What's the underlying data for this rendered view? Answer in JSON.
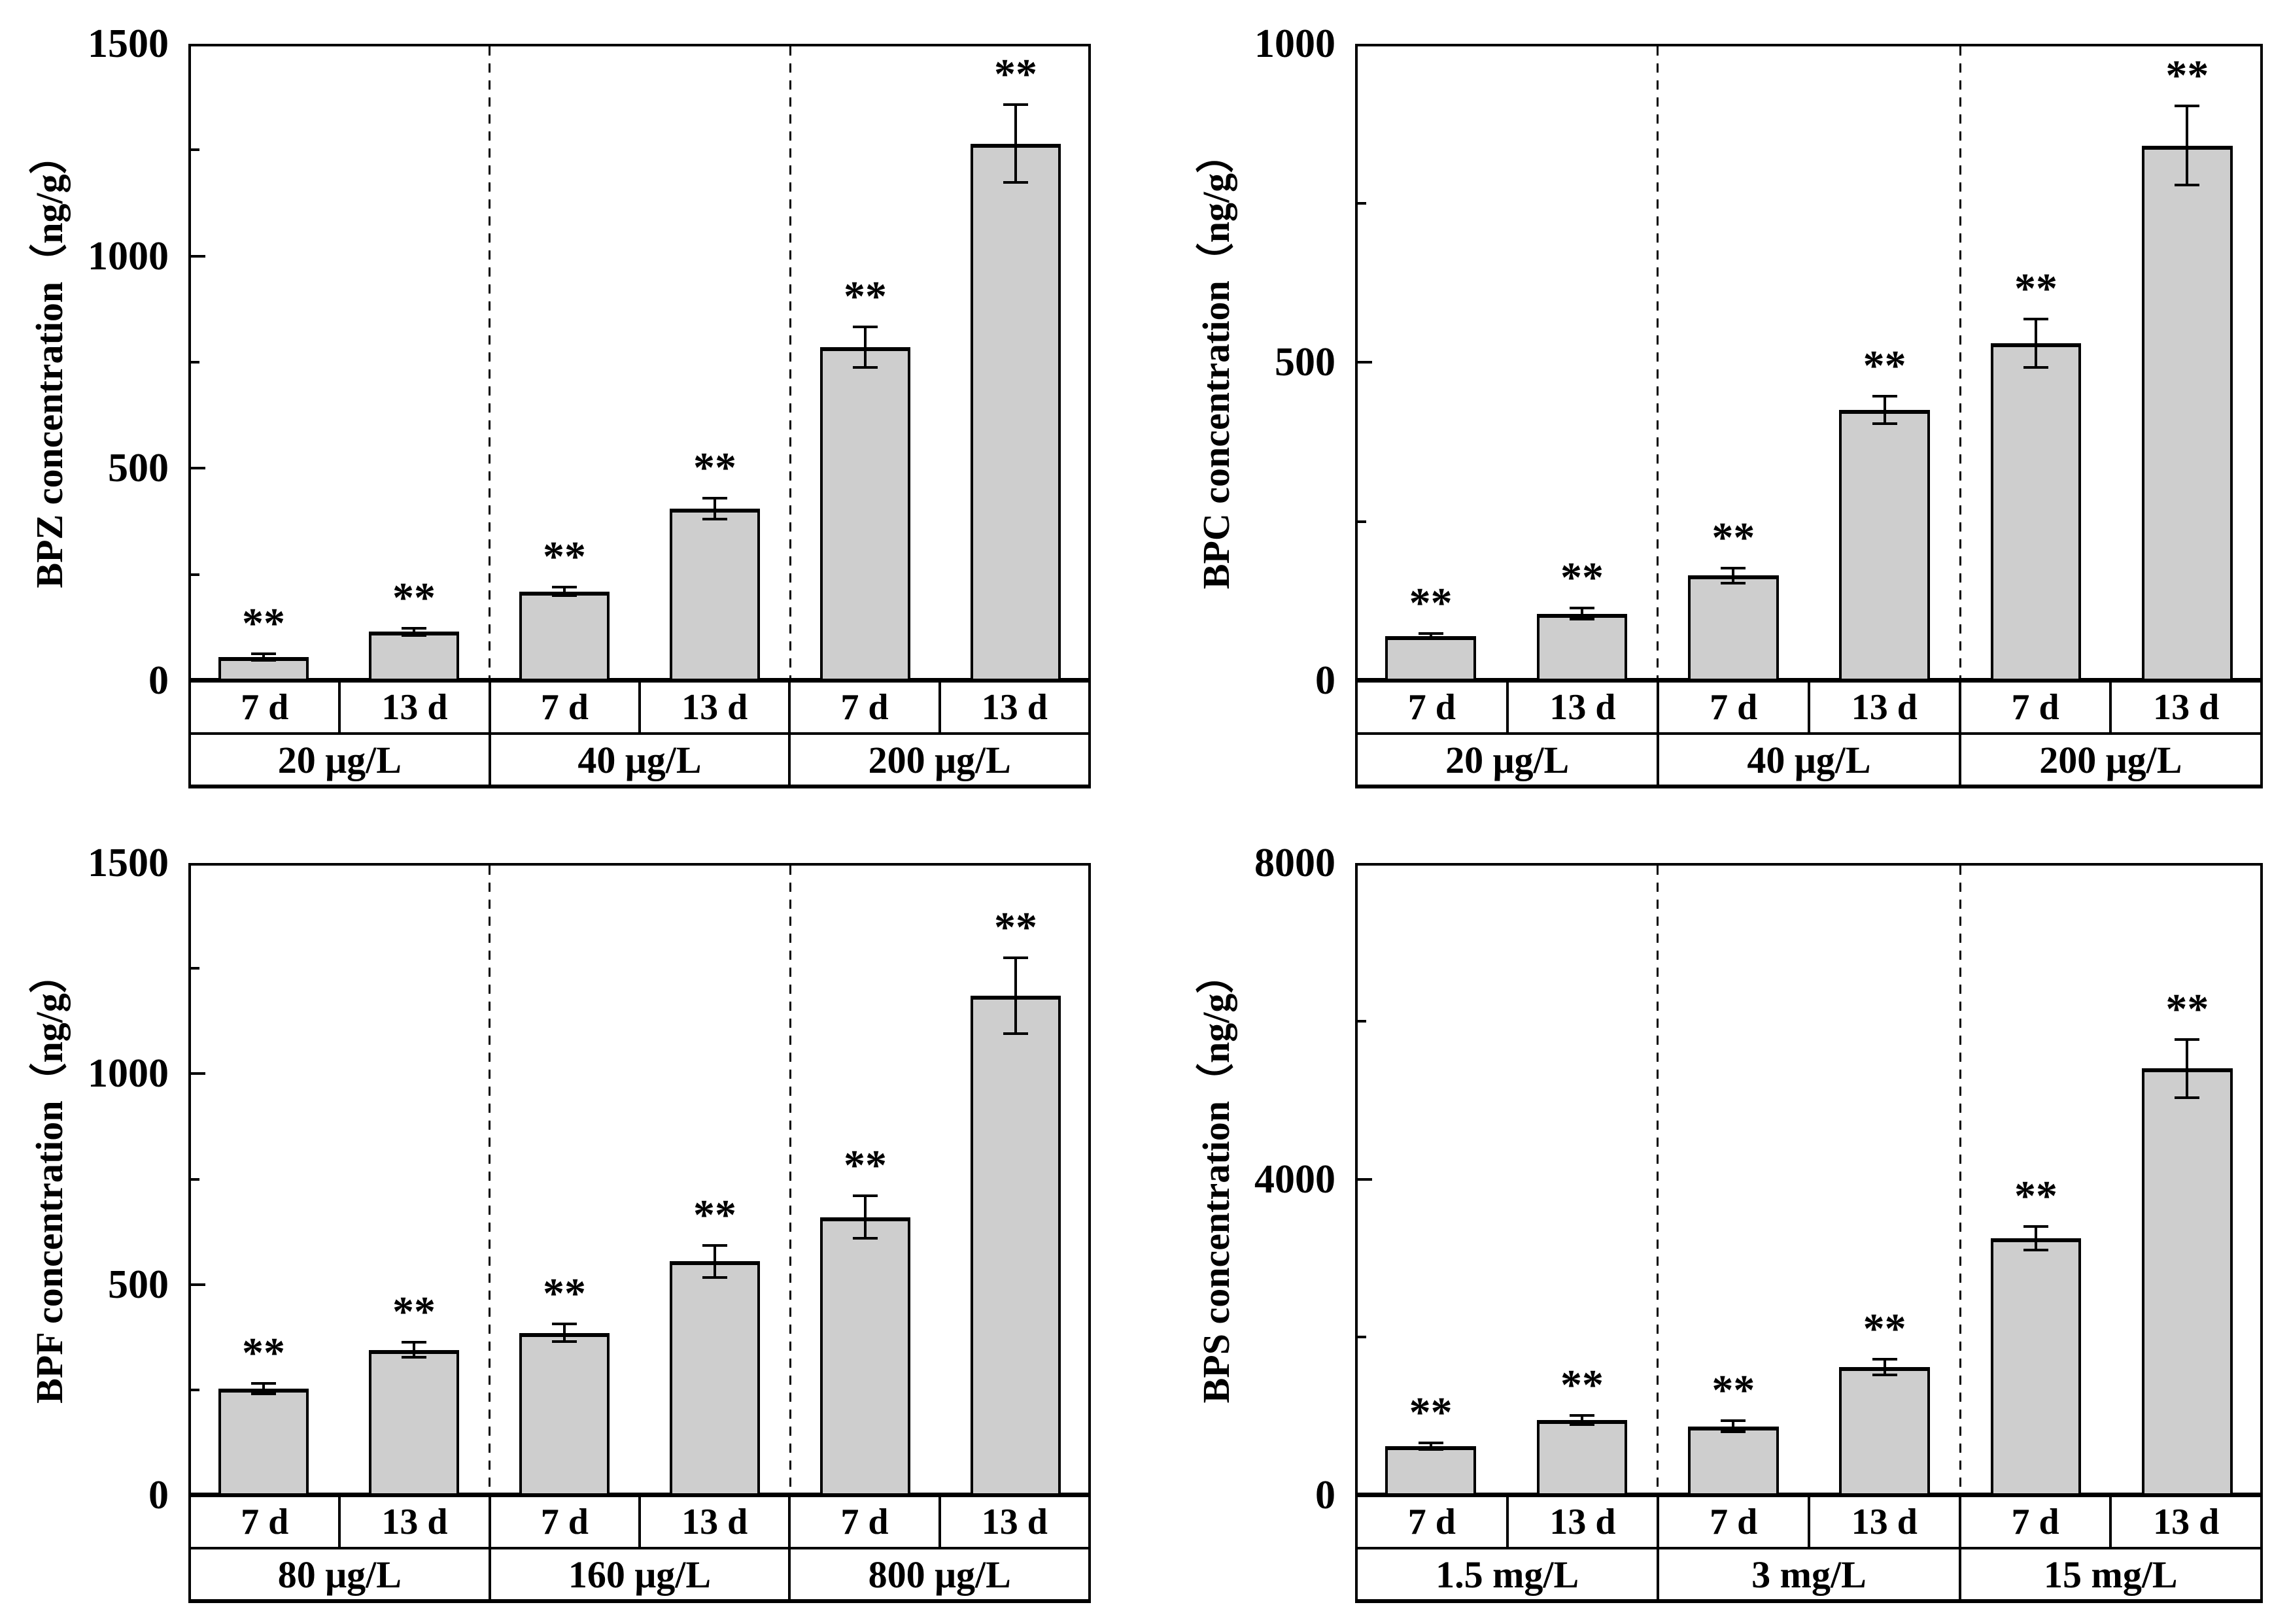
{
  "figure": {
    "description": "Four-panel grouped bar chart of bisphenol analogue concentrations (ng/g) after 7 d and 13 d exposure at three doses",
    "background_color": "#ffffff",
    "bar_fill_color": "#cecece",
    "line_color": "#000000",
    "significance_note": "**"
  },
  "chart_data": [
    {
      "type": "bar",
      "panel": "top-left",
      "analyte": "BPZ",
      "ylabel": "BPZ concentration（ng/g）",
      "xlabel": "",
      "ylim": [
        0,
        1500
      ],
      "yticks_major": [
        0,
        500,
        1000,
        1500
      ],
      "yticks_minor": [
        250,
        750,
        1250
      ],
      "grid": false,
      "legend": "none",
      "groups": [
        "20 μg/L",
        "40 μg/L",
        "200 μg/L"
      ],
      "day_cells": [
        "7 d",
        "13 d",
        "7 d",
        "13 d",
        "7 d",
        "13 d"
      ],
      "series_labels": [
        "20 μg/L 7 d",
        "20 μg/L 13 d",
        "40 μg/L 7 d",
        "40 μg/L 13 d",
        "200 μg/L 7 d",
        "200 μg/L 13 d"
      ],
      "values": [
        55,
        115,
        210,
        405,
        785,
        1265
      ],
      "errors": [
        8,
        8,
        10,
        24,
        48,
        92
      ],
      "sig": [
        "**",
        "**",
        "**",
        "**",
        "**",
        "**"
      ]
    },
    {
      "type": "bar",
      "panel": "top-right",
      "analyte": "BPC",
      "ylabel": "BPC concentration（ng/g）",
      "xlabel": "",
      "ylim": [
        0,
        1000
      ],
      "yticks_major": [
        0,
        500,
        1000
      ],
      "yticks_minor": [
        250,
        750
      ],
      "grid": false,
      "legend": "none",
      "groups": [
        "20 μg/L",
        "40 μg/L",
        "200 μg/L"
      ],
      "day_cells": [
        "7 d",
        "13 d",
        "7 d",
        "13 d",
        "7 d",
        "13 d"
      ],
      "series_labels": [
        "20 μg/L 7 d",
        "20 μg/L 13 d",
        "40 μg/L 7 d",
        "40 μg/L 13 d",
        "200 μg/L 7 d",
        "200 μg/L 13 d"
      ],
      "values": [
        70,
        105,
        165,
        425,
        530,
        840
      ],
      "errors": [
        4,
        9,
        12,
        22,
        38,
        62
      ],
      "sig": [
        "**",
        "**",
        "**",
        "**",
        "**",
        "**"
      ]
    },
    {
      "type": "bar",
      "panel": "bottom-left",
      "analyte": "BPF",
      "ylabel": "BPF concentration（ng/g）",
      "xlabel": "",
      "ylim": [
        0,
        1500
      ],
      "yticks_major": [
        0,
        500,
        1000,
        1500
      ],
      "yticks_minor": [
        250,
        750,
        1250
      ],
      "grid": false,
      "legend": "none",
      "groups": [
        "80 μg/L",
        "160 μg/L",
        "800 μg/L"
      ],
      "day_cells": [
        "7 d",
        "13 d",
        "7 d",
        "13 d",
        "7 d",
        "13 d"
      ],
      "series_labels": [
        "80 μg/L 7 d",
        "80 μg/L 13 d",
        "160 μg/L 7 d",
        "160 μg/L 13 d",
        "800 μg/L 7 d",
        "800 μg/L 13 d"
      ],
      "values": [
        253,
        345,
        385,
        555,
        660,
        1185
      ],
      "errors": [
        13,
        18,
        21,
        38,
        50,
        90
      ],
      "sig": [
        "**",
        "**",
        "**",
        "**",
        "**",
        "**"
      ]
    },
    {
      "type": "bar",
      "panel": "bottom-right",
      "analyte": "BPS",
      "ylabel": "BPS concentration（ng/g）",
      "xlabel": "",
      "ylim": [
        0,
        8000
      ],
      "yticks_major": [
        0,
        4000,
        8000
      ],
      "yticks_minor": [
        2000,
        6000
      ],
      "grid": false,
      "legend": "none",
      "groups": [
        "1.5 mg/L",
        "3 mg/L",
        "15 mg/L"
      ],
      "day_cells": [
        "7 d",
        "13 d",
        "7 d",
        "13 d",
        "7 d",
        "13 d"
      ],
      "series_labels": [
        "1.5 mg/L 7 d",
        "1.5 mg/L 13 d",
        "3 mg/L 7 d",
        "3 mg/L 13 d",
        "15 mg/L 7 d",
        "15 mg/L 13 d"
      ],
      "values": [
        620,
        950,
        870,
        1620,
        3250,
        5400
      ],
      "errors": [
        45,
        60,
        70,
        100,
        150,
        370
      ],
      "sig": [
        "**",
        "**",
        "**",
        "**",
        "**",
        "**"
      ]
    }
  ]
}
